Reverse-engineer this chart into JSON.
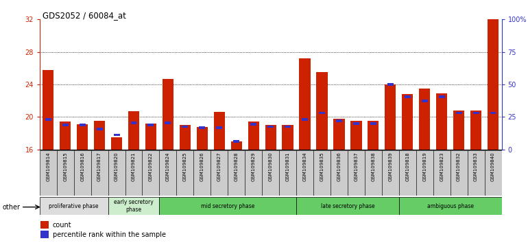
{
  "title": "GDS2052 / 60084_at",
  "samples": [
    "GSM109814",
    "GSM109815",
    "GSM109816",
    "GSM109817",
    "GSM109820",
    "GSM109821",
    "GSM109822",
    "GSM109824",
    "GSM109825",
    "GSM109826",
    "GSM109827",
    "GSM109828",
    "GSM109829",
    "GSM109830",
    "GSM109831",
    "GSM109834",
    "GSM109835",
    "GSM109836",
    "GSM109837",
    "GSM109838",
    "GSM109839",
    "GSM109818",
    "GSM109819",
    "GSM109823",
    "GSM109832",
    "GSM109833",
    "GSM109840"
  ],
  "count_values": [
    25.8,
    19.4,
    19.1,
    19.5,
    17.5,
    20.7,
    19.2,
    24.7,
    19.0,
    18.8,
    20.6,
    17.0,
    19.4,
    19.0,
    19.0,
    27.2,
    25.5,
    19.8,
    19.5,
    19.5,
    24.0,
    22.8,
    23.5,
    22.9,
    20.8,
    20.8,
    32.0
  ],
  "percentile_values": [
    19.7,
    19.0,
    19.0,
    18.5,
    17.8,
    19.3,
    19.0,
    19.3,
    18.8,
    18.7,
    18.7,
    17.0,
    19.1,
    18.8,
    18.8,
    19.7,
    20.5,
    19.5,
    19.2,
    19.2,
    24.0,
    22.5,
    22.0,
    22.5,
    20.5,
    20.5,
    20.5
  ],
  "ylim_left": [
    16,
    32
  ],
  "ylim_right": [
    0,
    100
  ],
  "yticks_left": [
    16,
    20,
    24,
    28,
    32
  ],
  "yticks_right": [
    0,
    25,
    50,
    75,
    100
  ],
  "bar_color": "#cc2200",
  "percentile_color": "#3333cc",
  "gridline_yticks": [
    20,
    24,
    28
  ],
  "phases": [
    {
      "label": "proliferative phase",
      "start": 0,
      "end": 4,
      "color": "#dddddd"
    },
    {
      "label": "early secretory\nphase",
      "start": 4,
      "end": 7,
      "color": "#cceecc"
    },
    {
      "label": "mid secretory phase",
      "start": 7,
      "end": 15,
      "color": "#66cc66"
    },
    {
      "label": "late secretory phase",
      "start": 15,
      "end": 21,
      "color": "#66cc66"
    },
    {
      "label": "ambiguous phase",
      "start": 21,
      "end": 27,
      "color": "#66cc66"
    }
  ],
  "bar_width": 0.65,
  "label_bg_color": "#cccccc",
  "fig_width": 7.7,
  "fig_height": 3.54
}
